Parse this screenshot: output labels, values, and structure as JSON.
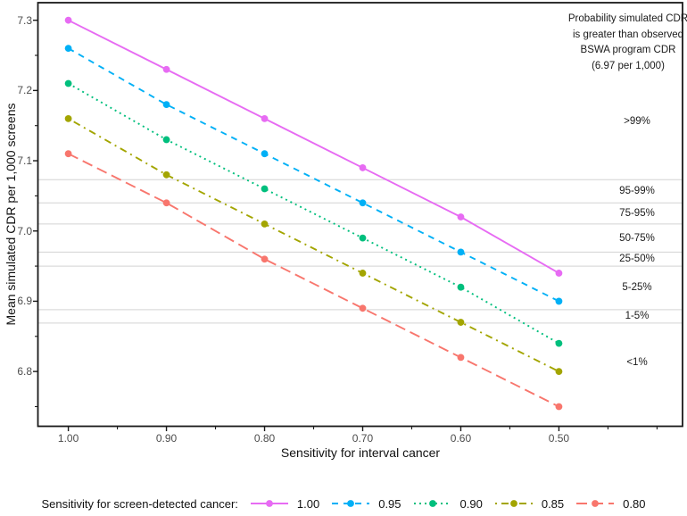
{
  "chart_data": {
    "type": "line",
    "title": "",
    "xlabel": "Sensitivity for interval cancer",
    "ylabel": "Mean simulated CDR per 1,000 screens",
    "x": [
      1.0,
      0.9,
      0.8,
      0.7,
      0.6,
      0.5
    ],
    "x_tick_labels": [
      "1.00",
      "0.90",
      "0.80",
      "0.70",
      "0.60",
      "0.50"
    ],
    "x_minor_ticks": [
      0.95,
      0.85,
      0.75,
      0.65,
      0.55,
      0.45,
      0.4
    ],
    "y_ticks": [
      7.3,
      7.2,
      7.1,
      7.0,
      6.9,
      6.8
    ],
    "y_tick_labels": [
      "7.3",
      "7.2",
      "7.1",
      "7.0",
      "6.9",
      "6.8"
    ],
    "y_minor_ticks": [
      7.25,
      7.15,
      7.05,
      6.95,
      6.85,
      6.75
    ],
    "xlim": [
      1.031,
      0.374
    ],
    "ylim": [
      6.722,
      7.325
    ],
    "x_axis_reversed": true,
    "grid": "horizontal probability-boundary lines only",
    "series": [
      {
        "name": "1.00",
        "color": "#E76BF3",
        "linetype": "solid",
        "values": [
          7.3,
          7.23,
          7.16,
          7.09,
          7.02,
          6.94
        ]
      },
      {
        "name": "0.95",
        "color": "#00B0F6",
        "linetype": "dashed",
        "values": [
          7.26,
          7.18,
          7.11,
          7.04,
          6.97,
          6.9
        ]
      },
      {
        "name": "0.90",
        "color": "#00BF7D",
        "linetype": "dotted",
        "values": [
          7.21,
          7.13,
          7.06,
          6.99,
          6.92,
          6.84
        ]
      },
      {
        "name": "0.85",
        "color": "#A3A500",
        "linetype": "dotdash",
        "values": [
          7.16,
          7.08,
          7.01,
          6.94,
          6.87,
          6.8
        ]
      },
      {
        "name": "0.80",
        "color": "#F8766D",
        "linetype": "longdash",
        "values": [
          7.11,
          7.04,
          6.96,
          6.89,
          6.82,
          6.75
        ]
      }
    ],
    "probability_boundaries": [
      7.073,
      7.04,
      7.01,
      6.97,
      6.95,
      6.888,
      6.869
    ],
    "probability_bands": [
      {
        "label": ">99%",
        "label_y": 7.156
      },
      {
        "label": "95-99%",
        "label_y": 7.057
      },
      {
        "label": "75-95%",
        "label_y": 7.025
      },
      {
        "label": "50-75%",
        "label_y": 6.99
      },
      {
        "label": "25-50%",
        "label_y": 6.96
      },
      {
        "label": "5-25%",
        "label_y": 6.919
      },
      {
        "label": "1-5%",
        "label_y": 6.879
      },
      {
        "label": "<1%",
        "label_y": 6.813
      }
    ],
    "annotation_lines": [
      "Probability simulated CDR",
      "is greater than observed",
      "BSWA program CDR",
      "(6.97 per 1,000)"
    ],
    "legend": {
      "title": "Sensitivity for screen-detected cancer:",
      "position": "bottom",
      "entries": [
        "1.00",
        "0.95",
        "0.90",
        "0.85",
        "0.80"
      ]
    },
    "colors": {
      "axis": "#1a1a1a",
      "gridline": "#d3d3d3",
      "tick_label": "#4d4d4d",
      "text": "#1a1a1a",
      "background": "#ffffff"
    }
  }
}
